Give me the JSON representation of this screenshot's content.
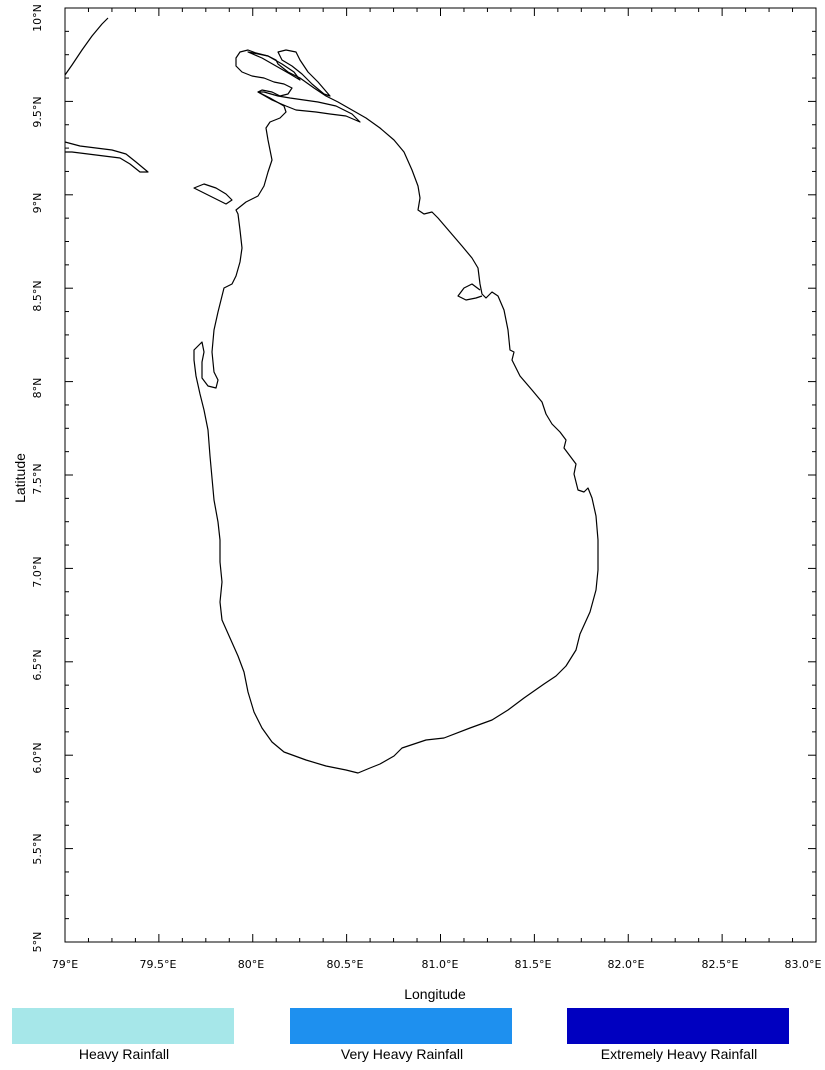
{
  "map": {
    "title": "",
    "x_axis_label": "Longitude",
    "y_axis_label": "Latitude",
    "lon_range": [
      79.0,
      83.0
    ],
    "lat_range": [
      5.0,
      10.0
    ],
    "x_tick_labels": [
      "79°E",
      "79.5°E",
      "80°E",
      "80.5°E",
      "81.0°E",
      "81.5°E",
      "82.0°E",
      "82.5°E",
      "83.0°E"
    ],
    "y_tick_labels": [
      "5°N",
      "5.5°N",
      "6.0°N",
      "6.5°N",
      "7.0°N",
      "7.5°N",
      "8°N",
      "8.5°N",
      "9°N",
      "9.5°N",
      "10°N"
    ],
    "region": "Sri Lanka coastline"
  },
  "legend": {
    "items": [
      {
        "label": "Heavy Rainfall",
        "color": "#a6e7e9"
      },
      {
        "label": "Very Heavy Rainfall",
        "color": "#1e90ef"
      },
      {
        "label": "Extremely Heavy Rainfall",
        "color": "#0000c0"
      }
    ]
  }
}
